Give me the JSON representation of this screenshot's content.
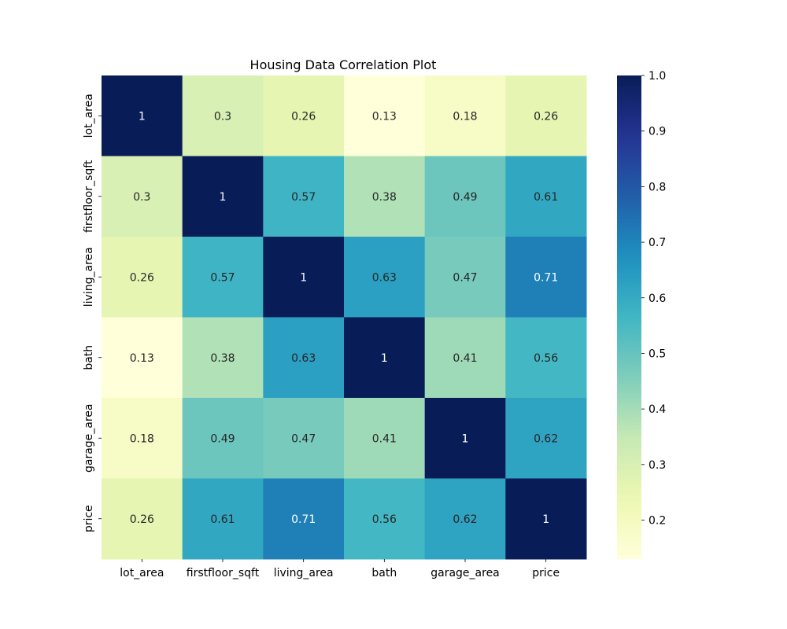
{
  "chart_data": {
    "type": "heatmap",
    "title": "Housing Data Correlation Plot",
    "row_labels": [
      "lot_area",
      "firstfloor_sqft",
      "living_area",
      "bath",
      "garage_area",
      "price"
    ],
    "col_labels": [
      "lot_area",
      "firstfloor_sqft",
      "living_area",
      "bath",
      "garage_area",
      "price"
    ],
    "values": [
      [
        1,
        0.3,
        0.26,
        0.13,
        0.18,
        0.26
      ],
      [
        0.3,
        1,
        0.57,
        0.38,
        0.49,
        0.61
      ],
      [
        0.26,
        0.57,
        1,
        0.63,
        0.47,
        0.71
      ],
      [
        0.13,
        0.38,
        0.63,
        1,
        0.41,
        0.56
      ],
      [
        0.18,
        0.49,
        0.47,
        0.41,
        1,
        0.62
      ],
      [
        0.26,
        0.61,
        0.71,
        0.56,
        0.62,
        1
      ]
    ],
    "value_labels": [
      [
        "1",
        "0.3",
        "0.26",
        "0.13",
        "0.18",
        "0.26"
      ],
      [
        "0.3",
        "1",
        "0.57",
        "0.38",
        "0.49",
        "0.61"
      ],
      [
        "0.26",
        "0.57",
        "1",
        "0.63",
        "0.47",
        "0.71"
      ],
      [
        "0.13",
        "0.38",
        "0.63",
        "1",
        "0.41",
        "0.56"
      ],
      [
        "0.18",
        "0.49",
        "0.47",
        "0.41",
        "1",
        "0.62"
      ],
      [
        "0.26",
        "0.61",
        "0.71",
        "0.56",
        "0.62",
        "1"
      ]
    ],
    "colormap": "YlGnBu",
    "colorbar": {
      "range": [
        0.13,
        1.0
      ],
      "ticks": [
        0.2,
        0.3,
        0.4,
        0.5,
        0.6,
        0.7,
        0.8,
        0.9,
        1.0
      ],
      "tick_labels": [
        "0.2",
        "0.3",
        "0.4",
        "0.5",
        "0.6",
        "0.7",
        "0.8",
        "0.9",
        "1.0"
      ]
    },
    "annotations": true,
    "grid": false
  }
}
